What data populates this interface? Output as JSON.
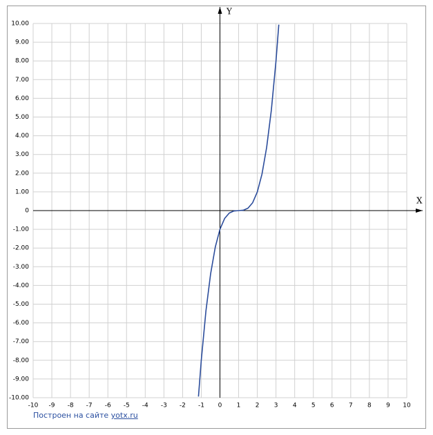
{
  "chart_data": {
    "type": "line",
    "x_label": "X",
    "y_label": "Y",
    "x": [
      -1.15,
      -1,
      -0.75,
      -0.5,
      -0.25,
      0,
      0.25,
      0.5,
      0.75,
      1,
      1.25,
      1.5,
      1.75,
      2,
      2.25,
      2.5,
      2.75,
      3,
      3.15
    ],
    "series": [
      {
        "color": "#2b4c9b",
        "values": [
          -9.94,
          -8,
          -5.36,
          -3.38,
          -1.95,
          -1,
          -0.42,
          -0.13,
          -0.02,
          0,
          0.02,
          0.13,
          0.42,
          1,
          1.95,
          3.38,
          5.36,
          8,
          9.94
        ]
      }
    ],
    "xlim": [
      -10,
      10
    ],
    "ylim": [
      -10,
      10
    ],
    "xticks": [
      -10,
      -9,
      -8,
      -7,
      -6,
      -5,
      -4,
      -3,
      -2,
      -1,
      0,
      1,
      2,
      3,
      4,
      5,
      6,
      7,
      8,
      9,
      10
    ],
    "yticks": [
      {
        "value": -10,
        "label": "-10.00"
      },
      {
        "value": -9,
        "label": "-9.00"
      },
      {
        "value": -8,
        "label": "-8.00"
      },
      {
        "value": -7,
        "label": "-7.00"
      },
      {
        "value": -6,
        "label": "-6.00"
      },
      {
        "value": -5,
        "label": "-5.00"
      },
      {
        "value": -4,
        "label": "-4.00"
      },
      {
        "value": -3,
        "label": "-3.00"
      },
      {
        "value": -2,
        "label": "-2.00"
      },
      {
        "value": -1,
        "label": "-1.00"
      },
      0,
      {
        "value": 1,
        "label": "1.00"
      },
      {
        "value": 2,
        "label": "2.00"
      },
      {
        "value": 3,
        "label": "3.00"
      },
      {
        "value": 4,
        "label": "4.00"
      },
      {
        "value": 5,
        "label": "5.00"
      },
      {
        "value": 6,
        "label": "6.00"
      },
      {
        "value": 7,
        "label": "7.00"
      },
      {
        "value": 8,
        "label": "8.00"
      },
      {
        "value": 9,
        "label": "9.00"
      },
      {
        "value": 10,
        "label": "10.00"
      }
    ],
    "grid": true,
    "source_text": "Построен на сайте",
    "source_link": "yotx.ru"
  }
}
